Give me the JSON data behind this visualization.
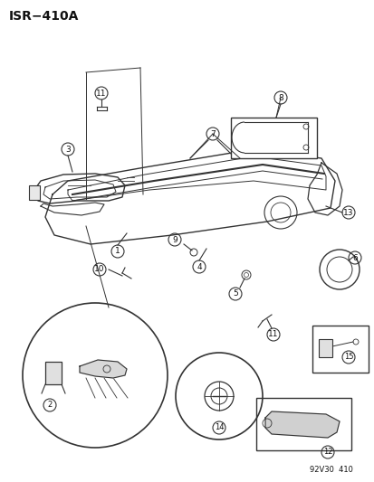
{
  "title": "ISR−410A",
  "footer": "92V30  410",
  "bg_color": "#ffffff",
  "line_color": "#333333",
  "text_color": "#111111",
  "fig_width": 4.14,
  "fig_height": 5.33,
  "dpi": 100
}
